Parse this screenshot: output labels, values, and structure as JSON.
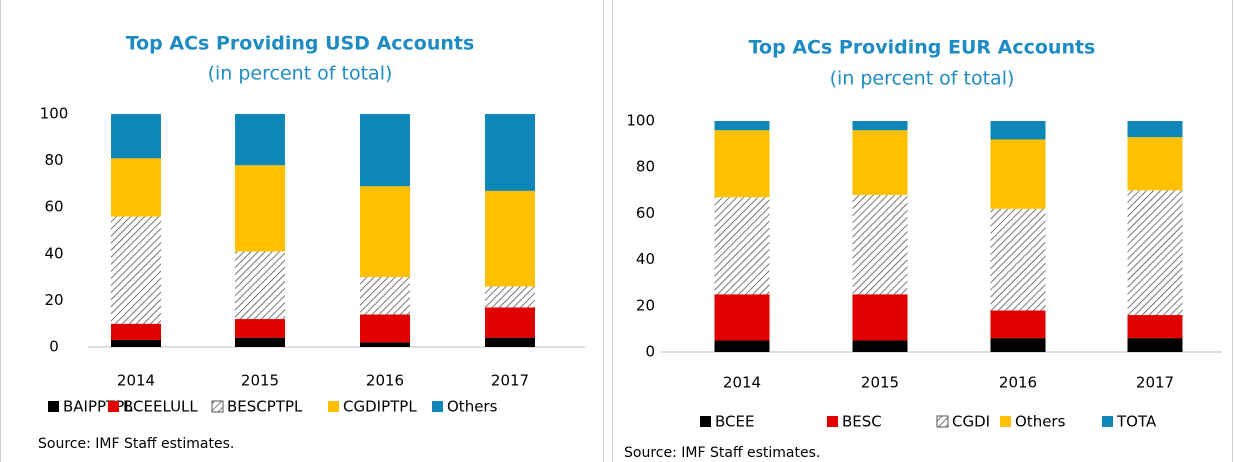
{
  "chart_data": [
    {
      "type": "bar",
      "stacked": true,
      "title": "Top ACs Providing USD Accounts",
      "subtitle": "(in percent of total)",
      "categories": [
        "2014",
        "2015",
        "2016",
        "2017"
      ],
      "series": [
        {
          "name": "BAIPPTPL",
          "color": "#000000",
          "values": [
            3,
            4,
            2,
            4
          ]
        },
        {
          "name": "BCEELULL",
          "color": "#e00000",
          "values": [
            7,
            8,
            12,
            13
          ]
        },
        {
          "name": "BESCPTPL",
          "color": "#ffffff",
          "hatch": true,
          "values": [
            46,
            29,
            16,
            9
          ]
        },
        {
          "name": "CGDIPTPL",
          "color": "#ffc000",
          "values": [
            25,
            37,
            39,
            41
          ]
        },
        {
          "name": "Others",
          "color": "#0e86b8",
          "values": [
            19,
            22,
            31,
            33
          ]
        }
      ],
      "ylim": [
        0,
        100
      ],
      "yticks": [
        0,
        20,
        40,
        60,
        80,
        100
      ],
      "legend": "bottom",
      "source": "Source: IMF Staff estimates."
    },
    {
      "type": "bar",
      "stacked": true,
      "title": "Top ACs Providing EUR Accounts",
      "subtitle": "(in percent of total)",
      "categories": [
        "2014",
        "2015",
        "2016",
        "2017"
      ],
      "series": [
        {
          "name": "BCEE",
          "color": "#000000",
          "values": [
            5,
            5,
            6,
            6
          ]
        },
        {
          "name": "BESC",
          "color": "#e00000",
          "values": [
            20,
            20,
            12,
            10
          ]
        },
        {
          "name": "CGDI",
          "color": "#ffffff",
          "hatch": true,
          "values": [
            42,
            43,
            44,
            54
          ]
        },
        {
          "name": "Others",
          "color": "#ffc000",
          "values": [
            29,
            28,
            30,
            23
          ]
        },
        {
          "name": "TOTA",
          "color": "#0e86b8",
          "values": [
            4,
            4,
            8,
            7
          ]
        }
      ],
      "ylim": [
        0,
        100
      ],
      "yticks": [
        0,
        20,
        40,
        60,
        80,
        100
      ],
      "legend": "bottom",
      "source": "Source: IMF Staff estimates."
    }
  ]
}
